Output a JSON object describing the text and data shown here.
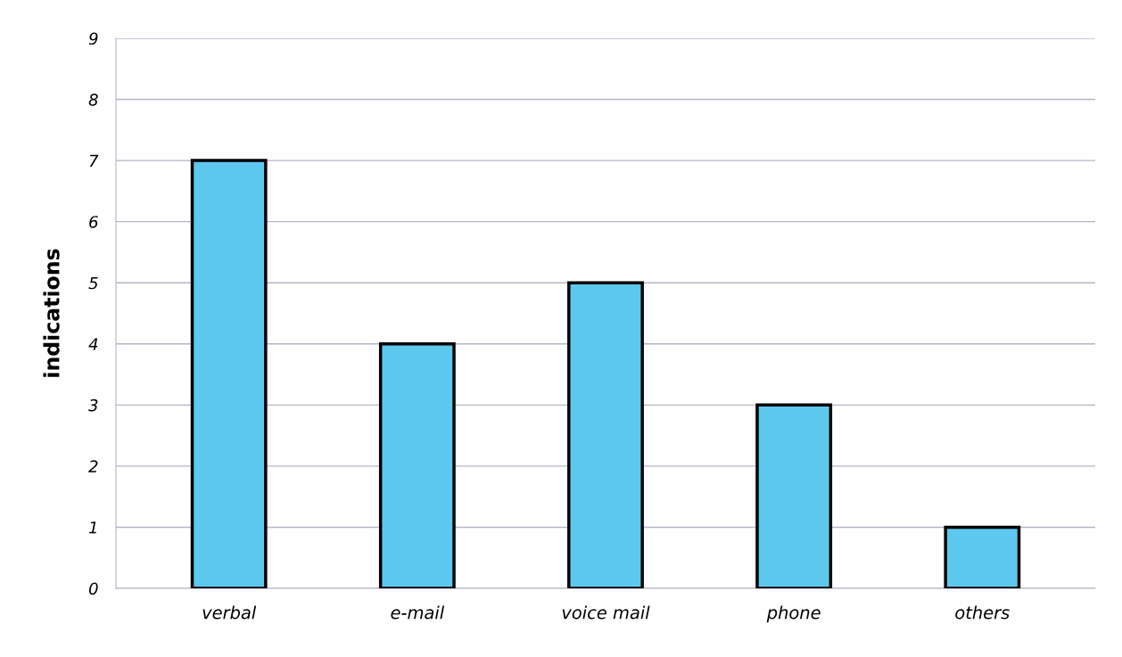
{
  "chart_data": {
    "type": "bar",
    "ylabel": "indications",
    "categories": [
      "verbal",
      "e-mail",
      "voice mail",
      "phone",
      "others"
    ],
    "values": [
      7,
      4,
      5,
      3,
      1
    ],
    "color": "#5cc8ee",
    "ylim": [
      0,
      9
    ],
    "yticks": [
      0,
      1,
      2,
      3,
      4,
      5,
      6,
      7,
      8,
      9
    ],
    "grid": "y",
    "legend": false
  }
}
